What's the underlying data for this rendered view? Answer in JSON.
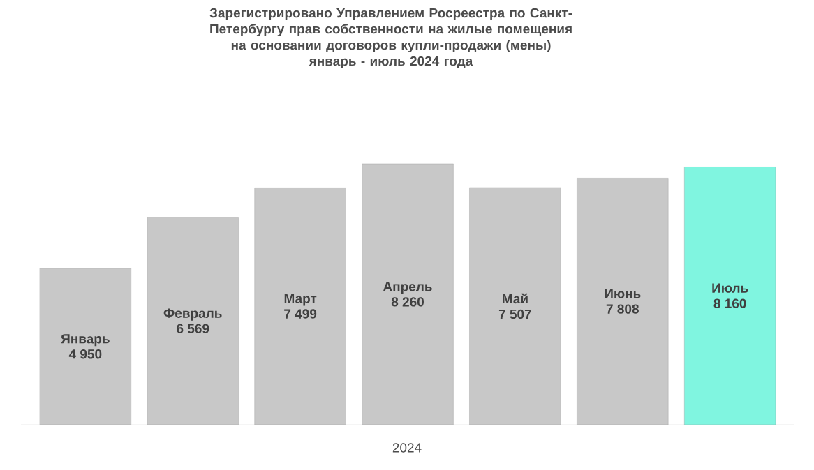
{
  "chart_data": {
    "type": "bar",
    "title": "Зарегистрировано Управлением Росреестра по Санкт-Петербургу прав собственности на жилые помещения на основании договоров купли-продажи (мены)",
    "subtitle": "январь - июль 2024 года",
    "xlabel": "2024",
    "categories": [
      "Январь",
      "Февраль",
      "Март",
      "Апрель",
      "Май",
      "Июнь",
      "Июль"
    ],
    "values": [
      4950,
      6569,
      7499,
      8260,
      7507,
      7808,
      8160
    ],
    "value_labels": [
      "4 950",
      "6 569",
      "7 499",
      "8 260",
      "7 507",
      "7 808",
      "8 160"
    ],
    "colors": [
      "#c8c8c8",
      "#c8c8c8",
      "#c8c8c8",
      "#c8c8c8",
      "#c8c8c8",
      "#c8c8c8",
      "#80f5e0"
    ],
    "orientation": "vertical"
  }
}
